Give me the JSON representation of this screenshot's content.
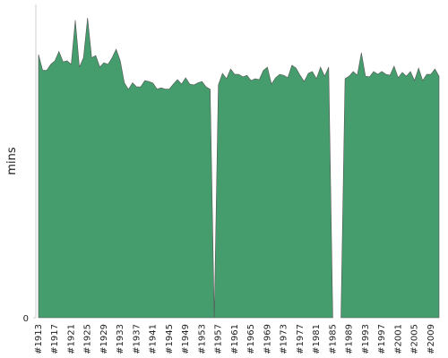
{
  "chart_data": {
    "type": "area",
    "y_label": "mins",
    "color": "#459c6c",
    "categories": [
      "#1913",
      null,
      null,
      null,
      "#1917",
      null,
      null,
      null,
      "#1921",
      null,
      null,
      null,
      "#1925",
      null,
      null,
      null,
      "#1929",
      null,
      null,
      null,
      "#1933",
      null,
      null,
      null,
      "#1937",
      null,
      null,
      null,
      "#1941",
      null,
      null,
      null,
      "#1945",
      null,
      null,
      null,
      "#1949",
      null,
      null,
      null,
      "#1953",
      null,
      null,
      null,
      "#1957",
      null,
      null,
      null,
      "#1961",
      null,
      null,
      null,
      "#1965",
      null,
      null,
      null,
      "#1969",
      null,
      null,
      null,
      "#1973",
      null,
      null,
      null,
      "#1977",
      null,
      null,
      null,
      "#1981",
      null,
      null,
      null,
      "#1985",
      null,
      null,
      null,
      "#1989",
      null,
      null,
      null,
      "#1993",
      null,
      null,
      null,
      "#1997",
      null,
      null,
      null,
      "#2001",
      null,
      null,
      null,
      "#2005",
      null,
      null,
      null,
      "#2009",
      null,
      null
    ],
    "values": [
      84,
      79,
      79,
      80.9,
      82,
      85,
      81.7,
      82,
      80.9,
      95,
      80,
      83,
      95.7,
      83,
      83.7,
      80,
      81.4,
      80.9,
      83,
      85.7,
      82,
      75,
      72.9,
      75,
      73.7,
      73.7,
      75.7,
      75.4,
      74.9,
      73,
      73.4,
      73,
      73,
      74.6,
      76,
      74.6,
      76.6,
      74.6,
      74.3,
      75,
      75.4,
      73.7,
      72.9,
      0,
      74.3,
      78,
      76.3,
      79.4,
      77.7,
      77.7,
      76.9,
      77.4,
      75.7,
      76.3,
      76,
      78.9,
      80,
      74.6,
      76.6,
      77.7,
      77.4,
      76.6,
      80.6,
      79.7,
      77.4,
      75.4,
      78,
      78.6,
      76.3,
      80,
      77.1,
      80,
      0,
      null,
      0,
      76.3,
      77.1,
      78.6,
      77.4,
      84.6,
      77.1,
      76.9,
      78.6,
      77.7,
      78.6,
      77.7,
      77.4,
      80.3,
      76.6,
      78.3,
      77.1,
      78.6,
      75.7,
      79.7,
      75.7,
      77.7,
      77.7,
      79.4,
      77.1
    ],
    "ylim": [
      0,
      100
    ],
    "yticks": [
      0
    ]
  }
}
